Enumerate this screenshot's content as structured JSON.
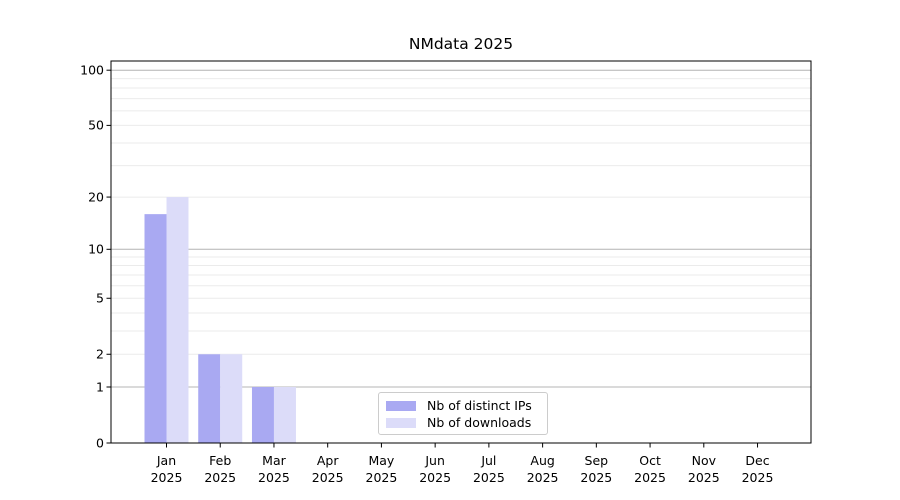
{
  "chart_data": {
    "type": "bar",
    "title": "NMdata 2025",
    "categories": [
      "Jan",
      "Feb",
      "Mar",
      "Apr",
      "May",
      "Jun",
      "Jul",
      "Aug",
      "Sep",
      "Oct",
      "Nov",
      "Dec"
    ],
    "x_year_label": "2025",
    "series": [
      {
        "name": "Nb of distinct IPs",
        "color": "#a9a9f2",
        "values": [
          16,
          2,
          1,
          0,
          0,
          0,
          0,
          0,
          0,
          0,
          0,
          0
        ]
      },
      {
        "name": "Nb of downloads",
        "color": "#dcdcf9",
        "values": [
          20,
          2,
          1,
          0,
          0,
          0,
          0,
          0,
          0,
          0,
          0,
          0
        ]
      }
    ],
    "yscale": "log1p",
    "ylim": [
      0,
      112
    ],
    "yticks": [
      0,
      1,
      2,
      5,
      10,
      20,
      50,
      100
    ],
    "grid": {
      "orientation": "horizontal",
      "major_values": [
        1,
        10,
        100
      ],
      "minor_values": [
        2,
        3,
        4,
        5,
        6,
        7,
        8,
        9,
        20,
        30,
        40,
        50,
        60,
        70,
        80,
        90
      ],
      "major_color": "#b4b4b4",
      "minor_color": "#ebebeb"
    },
    "legend": {
      "position": "lower center",
      "border_color": "#cccccc"
    },
    "axis_color": "#000000",
    "text_color": "#000000",
    "background": "#ffffff"
  }
}
